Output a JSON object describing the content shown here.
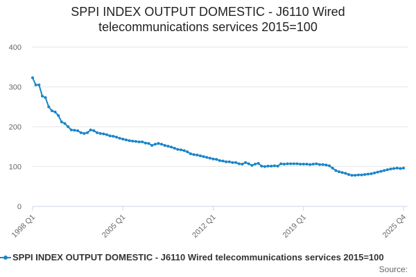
{
  "chart_data": {
    "type": "line",
    "title_line1": "SPPI INDEX OUTPUT DOMESTIC - J6110 Wired",
    "title_line2": "telecommunications services 2015=100",
    "title": "SPPI INDEX OUTPUT DOMESTIC - J6110 Wired telecommunications services 2015=100",
    "xlabel": "",
    "ylabel": "",
    "ylim": [
      0,
      400
    ],
    "y_ticks": [
      0,
      100,
      200,
      300,
      400
    ],
    "x_tick_labels": [
      "1998 Q1",
      "2005 Q1",
      "2012 Q1",
      "2019 Q1",
      "2025 Q4"
    ],
    "x_start": "1998 Q1",
    "x_end": "2025 Q4",
    "grid": true,
    "legend_position": "bottom",
    "series": [
      {
        "name": "SPPI INDEX OUTPUT DOMESTIC - J6110 Wired telecommunications services 2015=100",
        "color": "#1a85c8",
        "values": [
          323,
          305,
          305,
          277,
          273,
          250,
          240,
          237,
          228,
          212,
          208,
          200,
          192,
          191,
          190,
          185,
          183,
          185,
          192,
          190,
          185,
          183,
          182,
          180,
          177,
          176,
          174,
          171,
          169,
          167,
          165,
          164,
          163,
          162,
          162,
          159,
          158,
          153,
          156,
          158,
          156,
          153,
          151,
          149,
          146,
          143,
          142,
          140,
          137,
          132,
          130,
          129,
          127,
          125,
          123,
          121,
          119,
          118,
          115,
          114,
          112,
          112,
          110,
          110,
          107,
          106,
          110,
          107,
          103,
          106,
          108,
          101,
          100,
          101,
          101,
          102,
          101,
          107,
          106,
          107,
          107,
          107,
          107,
          106,
          106,
          106,
          105,
          106,
          107,
          105,
          105,
          104,
          102,
          96,
          90,
          87,
          85,
          83,
          80,
          78,
          78,
          79,
          79,
          80,
          81,
          82,
          84,
          86,
          88,
          90,
          92,
          94,
          95,
          96,
          95,
          96
        ]
      }
    ]
  },
  "legend": {
    "label": "SPPI INDEX OUTPUT DOMESTIC - J6110 Wired telecommunications services 2015=100"
  },
  "source": {
    "label": "Source:"
  },
  "colors": {
    "series": "#1a85c8",
    "grid": "#e6e6e6",
    "axis": "#ccd6eb",
    "tick_text": "#666666"
  }
}
